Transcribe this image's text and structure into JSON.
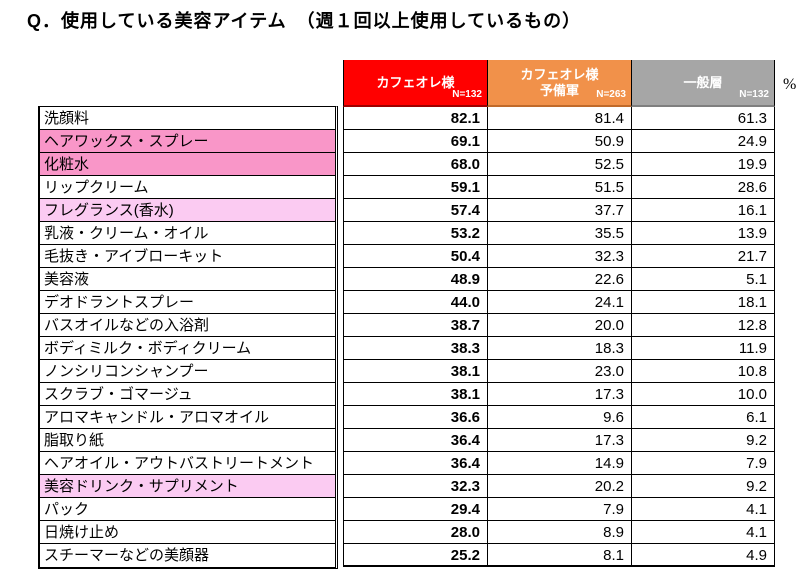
{
  "title": "Q．使用している美容アイテム　（週１回以上使用しているもの）",
  "unit_label": "%",
  "columns": [
    {
      "label": "カフェオレ様",
      "sub": "",
      "n": "N=132"
    },
    {
      "label": "カフェオレ様",
      "sub": "予備軍",
      "n": "N=263"
    },
    {
      "label": "一般層",
      "sub": "",
      "n": "N=132"
    }
  ],
  "rows": [
    {
      "label": "洗顔料",
      "values": [
        "82.1",
        "81.4",
        "61.3"
      ],
      "highlight": "none"
    },
    {
      "label": "ヘアワックス・スプレー",
      "values": [
        "69.1",
        "50.9",
        "24.9"
      ],
      "highlight": "strong"
    },
    {
      "label": "化粧水",
      "values": [
        "68.0",
        "52.5",
        "19.9"
      ],
      "highlight": "strong"
    },
    {
      "label": "リップクリーム",
      "values": [
        "59.1",
        "51.5",
        "28.6"
      ],
      "highlight": "none"
    },
    {
      "label": "フレグランス(香水)",
      "values": [
        "57.4",
        "37.7",
        "16.1"
      ],
      "highlight": "light"
    },
    {
      "label": "乳液・クリーム・オイル",
      "values": [
        "53.2",
        "35.5",
        "13.9"
      ],
      "highlight": "none"
    },
    {
      "label": "毛抜き・アイブローキット",
      "values": [
        "50.4",
        "32.3",
        "21.7"
      ],
      "highlight": "none"
    },
    {
      "label": "美容液",
      "values": [
        "48.9",
        "22.6",
        "5.1"
      ],
      "highlight": "none"
    },
    {
      "label": "デオドラントスプレー",
      "values": [
        "44.0",
        "24.1",
        "18.1"
      ],
      "highlight": "none"
    },
    {
      "label": "バスオイルなどの入浴剤",
      "values": [
        "38.7",
        "20.0",
        "12.8"
      ],
      "highlight": "none"
    },
    {
      "label": "ボディミルク・ボディクリーム",
      "values": [
        "38.3",
        "18.3",
        "11.9"
      ],
      "highlight": "none"
    },
    {
      "label": "ノンシリコンシャンプー",
      "values": [
        "38.1",
        "23.0",
        "10.8"
      ],
      "highlight": "none"
    },
    {
      "label": "スクラブ・ゴマージュ",
      "values": [
        "38.1",
        "17.3",
        "10.0"
      ],
      "highlight": "none"
    },
    {
      "label": "アロマキャンドル・アロマオイル",
      "values": [
        "36.6",
        "9.6",
        "6.1"
      ],
      "highlight": "none"
    },
    {
      "label": "脂取り紙",
      "values": [
        "36.4",
        "17.3",
        "9.2"
      ],
      "highlight": "none"
    },
    {
      "label": "ヘアオイル・アウトバストリートメント",
      "values": [
        "36.4",
        "14.9",
        "7.9"
      ],
      "highlight": "none"
    },
    {
      "label": "美容ドリンク・サプリメント",
      "values": [
        "32.3",
        "20.2",
        "9.2"
      ],
      "highlight": "light"
    },
    {
      "label": "パック",
      "values": [
        "29.4",
        "7.9",
        "4.1"
      ],
      "highlight": "none"
    },
    {
      "label": "日焼け止め",
      "values": [
        "28.0",
        "8.9",
        "4.1"
      ],
      "highlight": "none"
    },
    {
      "label": "スチーマーなどの美顔器",
      "values": [
        "25.2",
        "8.1",
        "4.9"
      ],
      "highlight": "none"
    }
  ],
  "colors": {
    "header_red": "#FF0000",
    "header_orange": "#F1914A",
    "header_gray": "#A6A6A6",
    "header_text": "#FFFFFF",
    "row_pink_strong": "#F996C8",
    "row_pink_light": "#FBCBF2"
  },
  "chart_data": {
    "type": "table",
    "title": "Q．使用している美容アイテム　（週１回以上使用しているもの）",
    "unit": "%",
    "categories": [
      "洗顔料",
      "ヘアワックス・スプレー",
      "化粧水",
      "リップクリーム",
      "フレグランス(香水)",
      "乳液・クリーム・オイル",
      "毛抜き・アイブローキット",
      "美容液",
      "デオドラントスプレー",
      "バスオイルなどの入浴剤",
      "ボディミルク・ボディクリーム",
      "ノンシリコンシャンプー",
      "スクラブ・ゴマージュ",
      "アロマキャンドル・アロマオイル",
      "脂取り紙",
      "ヘアオイル・アウトバストリートメント",
      "美容ドリンク・サプリメント",
      "パック",
      "日焼け止め",
      "スチーマーなどの美顔器"
    ],
    "series": [
      {
        "name": "カフェオレ様",
        "n": 132,
        "values": [
          82.1,
          69.1,
          68.0,
          59.1,
          57.4,
          53.2,
          50.4,
          48.9,
          44.0,
          38.7,
          38.3,
          38.1,
          38.1,
          36.6,
          36.4,
          36.4,
          32.3,
          29.4,
          28.0,
          25.2
        ]
      },
      {
        "name": "カフェオレ様 予備軍",
        "n": 263,
        "values": [
          81.4,
          50.9,
          52.5,
          51.5,
          37.7,
          35.5,
          32.3,
          22.6,
          24.1,
          20.0,
          18.3,
          23.0,
          17.3,
          9.6,
          17.3,
          14.9,
          20.2,
          7.9,
          8.9,
          8.1
        ]
      },
      {
        "name": "一般層",
        "n": 132,
        "values": [
          61.3,
          24.9,
          19.9,
          28.6,
          16.1,
          13.9,
          21.7,
          5.1,
          18.1,
          12.8,
          11.9,
          10.8,
          10.0,
          6.1,
          9.2,
          7.9,
          9.2,
          4.1,
          4.1,
          4.9
        ]
      }
    ],
    "highlighted_rows_strong": [
      "ヘアワックス・スプレー",
      "化粧水"
    ],
    "highlighted_rows_light": [
      "フレグランス(香水)",
      "美容ドリンク・サプリメント"
    ]
  }
}
